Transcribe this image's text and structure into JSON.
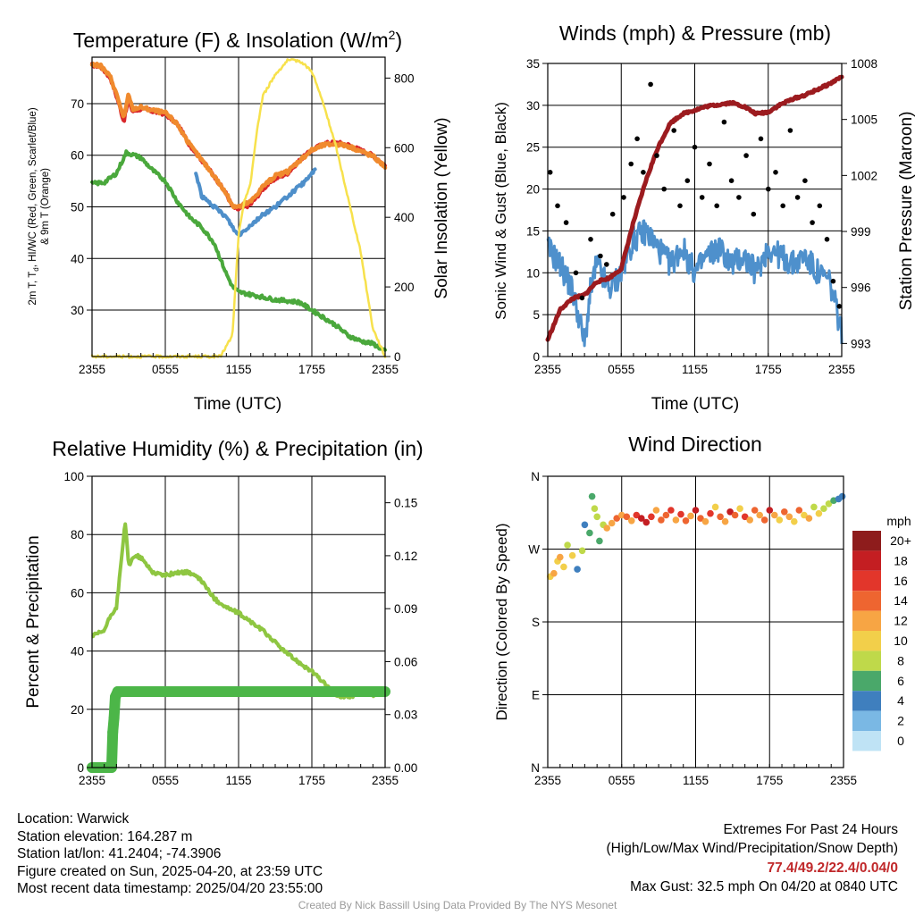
{
  "panels": {
    "temperature": {
      "title": "Temperature (F) & Insolation (W/m",
      "title_sup": "2",
      "title_tail": ")",
      "ylabel_left_line1": "2m T, T",
      "ylabel_left_sub": "d",
      "ylabel_left_rest": ", HI/WC (Red, Green, Scarlet/Blue)",
      "ylabel_left_line2": "& 9m T (Orange)",
      "ylabel_right": "Solar Insolation (Yellow)",
      "xlabel": "Time (UTC)",
      "xticks": [
        "2355",
        "0555",
        "1155",
        "1755",
        "2355"
      ],
      "yticks_left": [
        "30",
        "40",
        "50",
        "60",
        "70"
      ],
      "yticks_right": [
        "0",
        "200",
        "400",
        "600",
        "800"
      ]
    },
    "winds": {
      "title": "Winds (mph) & Pressure (mb)",
      "ylabel_left": "Sonic Wind & Gust (Blue, Black)",
      "ylabel_right": "Station Pressure (Maroon)",
      "xlabel": "Time (UTC)",
      "xticks": [
        "2355",
        "0555",
        "1155",
        "1755",
        "2355"
      ],
      "yticks_left": [
        "0",
        "5",
        "10",
        "15",
        "20",
        "25",
        "30",
        "35"
      ],
      "yticks_right": [
        "993",
        "996",
        "999",
        "1002",
        "1005",
        "1008"
      ]
    },
    "humidity": {
      "title": "Relative Humidity (%) & Precipitation (in)",
      "ylabel_left": "Percent & Precipitation",
      "xticks": [
        "2355",
        "0555",
        "1155",
        "1755",
        "2355"
      ],
      "yticks_left": [
        "0",
        "20",
        "40",
        "60",
        "80",
        "100"
      ],
      "yticks_right": [
        "0.00",
        "0.03",
        "0.06",
        "0.09",
        "0.12",
        "0.15"
      ]
    },
    "direction": {
      "title": "Wind Direction",
      "ylabel_left": "Direction (Colored By Speed)",
      "xticks": [
        "2355",
        "0555",
        "1155",
        "1755",
        "2355"
      ],
      "yticks_left": [
        "N",
        "E",
        "S",
        "W",
        "N"
      ],
      "legend_title": "mph",
      "legend_labels": [
        "20+",
        "18",
        "16",
        "14",
        "12",
        "10",
        "8",
        "6",
        "4",
        "2",
        "0"
      ],
      "legend_colors": [
        "#8e1c1c",
        "#c41e22",
        "#e2362b",
        "#ee6530",
        "#f7a544",
        "#f2cf4a",
        "#bfd94a",
        "#4aa86a",
        "#3f7fbe",
        "#7ab8e4",
        "#bfe3f5"
      ]
    }
  },
  "chart_data": [
    {
      "type": "line",
      "title": "Temperature (F) & Insolation (W/m2)",
      "xlabel": "Time (UTC)",
      "ylabel": "2m T, Td, HI/WC (Red, Green, Scarlet/Blue) & 9m T (Orange)",
      "y2label": "Solar Insolation (Yellow)",
      "xlim": [
        0,
        24
      ],
      "ylim": [
        21,
        79
      ],
      "y2lim": [
        0,
        860
      ],
      "x_tick_labels": [
        "2355",
        "0555",
        "1155",
        "1755",
        "2355"
      ],
      "series": [
        {
          "name": "2m T",
          "color": "#d9262b",
          "axis": "left",
          "x": [
            0,
            0.7,
            1.5,
            2.2,
            2.6,
            3.0,
            3.3,
            4,
            5,
            6,
            7,
            8,
            9,
            10,
            11,
            11.5,
            12,
            13,
            14,
            15,
            16,
            17,
            18,
            19,
            20,
            21,
            22,
            23,
            24
          ],
          "y": [
            77.5,
            77.2,
            75,
            70,
            66.5,
            71,
            68.5,
            69,
            68.5,
            68,
            66,
            62,
            59,
            56,
            52.5,
            50,
            49.5,
            50.5,
            53.5,
            55.5,
            56.5,
            59,
            61,
            62.3,
            62.5,
            62,
            61,
            60,
            58
          ]
        },
        {
          "name": "9m T",
          "color": "#f08a2e",
          "axis": "left",
          "x": [
            0,
            0.7,
            1.5,
            2.2,
            2.6,
            3.0,
            3.3,
            4,
            5,
            6,
            7,
            8,
            9,
            10,
            11,
            11.5,
            12,
            13,
            14,
            15,
            16,
            17,
            18,
            19,
            20,
            21,
            22,
            23,
            24
          ],
          "y": [
            77.6,
            77.3,
            75.2,
            70.5,
            67,
            72,
            69,
            69.3,
            68.7,
            68.2,
            66,
            62,
            59,
            56,
            52.5,
            50.3,
            50,
            51,
            54,
            56,
            56.8,
            59,
            61,
            62,
            62.2,
            61.8,
            60.8,
            59.8,
            57.8
          ]
        },
        {
          "name": "Td",
          "color": "#4aa83c",
          "axis": "left",
          "x": [
            0,
            1,
            2,
            2.8,
            3.5,
            4,
            5,
            6,
            7,
            8,
            9,
            10,
            11,
            11.5,
            12,
            13,
            14,
            15,
            16,
            17,
            18,
            19,
            20,
            21,
            22,
            23,
            24
          ],
          "y": [
            54.5,
            54.7,
            56.5,
            60.5,
            60,
            59.5,
            57,
            55,
            51,
            48,
            46,
            43,
            37,
            34.5,
            33.5,
            33,
            32.5,
            32,
            31.8,
            31.5,
            30,
            28.5,
            27,
            25,
            24,
            23.5,
            22
          ]
        },
        {
          "name": "HI/WC",
          "color": "#4e8fca",
          "axis": "left",
          "x": [
            8.5,
            9,
            10,
            11,
            11.8,
            12,
            13,
            14,
            15,
            16,
            17,
            17.5,
            18,
            18.3
          ],
          "y": [
            56.5,
            52,
            50,
            48,
            45,
            44.5,
            46.5,
            48.5,
            50,
            52,
            54,
            55,
            56.5,
            57.5
          ]
        },
        {
          "name": "Solar Insolation",
          "color": "#f7e14c",
          "axis": "right",
          "x": [
            0,
            10.5,
            11.5,
            12,
            12.5,
            13,
            13.5,
            14,
            15,
            16,
            17,
            18,
            19,
            20,
            21,
            22,
            23,
            24
          ],
          "y": [
            0,
            0,
            60,
            350,
            450,
            500,
            650,
            750,
            810,
            850,
            850,
            820,
            720,
            600,
            450,
            300,
            80,
            0
          ]
        }
      ]
    },
    {
      "type": "line",
      "title": "Winds (mph) & Pressure (mb)",
      "xlabel": "Time (UTC)",
      "ylabel": "Sonic Wind & Gust (Blue, Black)",
      "y2label": "Station Pressure (Maroon)",
      "xlim": [
        0,
        24
      ],
      "ylim": [
        0,
        35
      ],
      "y2lim": [
        992.3,
        1008
      ],
      "x_tick_labels": [
        "2355",
        "0555",
        "1155",
        "1755",
        "2355"
      ],
      "series": [
        {
          "name": "Sonic Wind",
          "color": "#4e90cc",
          "axis": "left",
          "x": [
            0,
            1,
            2,
            2.5,
            3,
            3.5,
            4,
            5,
            6,
            7,
            8,
            9,
            10,
            11,
            12,
            13,
            14,
            15,
            16,
            17,
            18,
            19,
            20,
            21,
            22,
            23,
            23.5,
            24
          ],
          "y": [
            13,
            11,
            8,
            5,
            1.5,
            8,
            11,
            8,
            10,
            14,
            15,
            13,
            11,
            13,
            10,
            12,
            13,
            11,
            12,
            10,
            13,
            12,
            11,
            12,
            10,
            9,
            6,
            3
          ]
        },
        {
          "name": "Gust",
          "color": "#000000",
          "axis": "left",
          "x": [
            0.2,
            0.8,
            1.5,
            2.3,
            2.8,
            3.5,
            4.3,
            4.8,
            5.3,
            6.2,
            6.8,
            7.3,
            7.8,
            8.4,
            8.9,
            9.5,
            10.3,
            10.8,
            11.4,
            12,
            12.6,
            13.2,
            13.8,
            14.4,
            15,
            15.6,
            16.2,
            16.8,
            17.4,
            18,
            18.6,
            19.2,
            19.8,
            20.4,
            21,
            21.6,
            22.2,
            22.8,
            23.3,
            23.8
          ],
          "y": [
            22,
            18,
            16,
            10,
            7,
            14,
            12,
            11,
            17,
            19,
            23,
            26,
            22,
            32.5,
            24,
            20,
            27,
            18,
            21,
            25,
            19,
            23,
            18,
            28,
            21,
            19,
            24,
            17,
            26,
            20,
            22,
            18,
            27,
            19,
            21,
            16,
            18,
            14,
            9,
            6
          ]
        },
        {
          "name": "Station Pressure",
          "color": "#9c1b1f",
          "axis": "right",
          "x": [
            0,
            1,
            2,
            3,
            4,
            5,
            6,
            7,
            8,
            9,
            10,
            11,
            12,
            13,
            14,
            15,
            16,
            17,
            18,
            19,
            20,
            21,
            22,
            23,
            24
          ],
          "y": [
            993.2,
            994.8,
            995.4,
            995.6,
            996.3,
            996.5,
            997,
            999.5,
            1001.7,
            1003.5,
            1004.8,
            1005.3,
            1005.5,
            1005.7,
            1005.8,
            1005.9,
            1005.7,
            1005.3,
            1005.4,
            1005.8,
            1006.1,
            1006.3,
            1006.6,
            1006.9,
            1007.3
          ]
        }
      ]
    },
    {
      "type": "line",
      "title": "Relative Humidity (%) & Precipitation (in)",
      "ylabel": "Percent & Precipitation",
      "xlim": [
        0,
        24
      ],
      "ylim": [
        0,
        100
      ],
      "y2lim": [
        0,
        0.165
      ],
      "x_tick_labels": [
        "2355",
        "0555",
        "1155",
        "1755",
        "2355"
      ],
      "series": [
        {
          "name": "Relative Humidity",
          "color": "#8ec641",
          "axis": "left",
          "x": [
            0,
            1,
            1.5,
            2,
            2.5,
            2.7,
            3,
            3.5,
            4,
            5,
            6,
            7,
            8,
            9,
            10,
            11,
            12,
            13,
            14,
            15,
            16,
            17,
            18,
            19,
            20,
            21,
            22,
            23,
            24
          ],
          "y": [
            45,
            47,
            52,
            55,
            75,
            85,
            69,
            73,
            72,
            67,
            66,
            67,
            67,
            64,
            58,
            55,
            53,
            50,
            47,
            43,
            39,
            36,
            33,
            29,
            25,
            24,
            26,
            25,
            26
          ]
        },
        {
          "name": "Precipitation",
          "color": "#4cb648",
          "axis": "right",
          "x": [
            0,
            0.5,
            1,
            1.5,
            1.6,
            1.7,
            1.8,
            1.9,
            2.1,
            3,
            6,
            9,
            12,
            15,
            18,
            21,
            24
          ],
          "y": [
            0.0,
            0.0,
            0.0,
            0.0,
            0.0,
            0.02,
            0.028,
            0.04,
            0.043,
            0.043,
            0.043,
            0.043,
            0.043,
            0.043,
            0.043,
            0.043,
            0.043
          ]
        }
      ]
    },
    {
      "type": "scatter",
      "title": "Wind Direction",
      "ylabel": "Direction (Colored By Speed)",
      "xlim": [
        0,
        24
      ],
      "ylim": [
        0,
        360
      ],
      "x_tick_labels": [
        "2355",
        "0555",
        "1155",
        "1755",
        "2355"
      ],
      "y_tick_labels": [
        "N",
        "E",
        "S",
        "W",
        "N"
      ],
      "color_scale": {
        "title": "mph",
        "min": 0,
        "max": 20
      },
      "points": [
        [
          0.2,
          236,
          10
        ],
        [
          0.5,
          240,
          11
        ],
        [
          0.8,
          255,
          9
        ],
        [
          1.0,
          260,
          12
        ],
        [
          1.3,
          248,
          10
        ],
        [
          1.6,
          275,
          8
        ],
        [
          2.0,
          262,
          9
        ],
        [
          2.4,
          245,
          4
        ],
        [
          2.8,
          268,
          7
        ],
        [
          3.0,
          300,
          4
        ],
        [
          3.4,
          290,
          5
        ],
        [
          3.6,
          335,
          6
        ],
        [
          3.8,
          320,
          7
        ],
        [
          4.0,
          310,
          7
        ],
        [
          4.2,
          280,
          6
        ],
        [
          4.5,
          300,
          8
        ],
        [
          4.8,
          296,
          12
        ],
        [
          5.2,
          302,
          11
        ],
        [
          5.6,
          308,
          13
        ],
        [
          6.0,
          312,
          11
        ],
        [
          6.4,
          310,
          14
        ],
        [
          6.8,
          305,
          12
        ],
        [
          7.2,
          312,
          16
        ],
        [
          7.6,
          308,
          18
        ],
        [
          8.0,
          303,
          17
        ],
        [
          8.4,
          310,
          15
        ],
        [
          8.8,
          318,
          12
        ],
        [
          9.2,
          306,
          14
        ],
        [
          9.6,
          312,
          13
        ],
        [
          10.0,
          318,
          16
        ],
        [
          10.4,
          306,
          12
        ],
        [
          10.8,
          313,
          15
        ],
        [
          11.2,
          305,
          13
        ],
        [
          11.6,
          311,
          11
        ],
        [
          12.0,
          318,
          18
        ],
        [
          12.4,
          308,
          14
        ],
        [
          12.8,
          304,
          12
        ],
        [
          13.2,
          314,
          15
        ],
        [
          13.6,
          322,
          9
        ],
        [
          14.0,
          310,
          14
        ],
        [
          14.4,
          304,
          12
        ],
        [
          14.8,
          316,
          18
        ],
        [
          15.2,
          312,
          13
        ],
        [
          15.6,
          320,
          10
        ],
        [
          16.0,
          310,
          16
        ],
        [
          16.4,
          306,
          12
        ],
        [
          16.8,
          318,
          14
        ],
        [
          17.2,
          312,
          11
        ],
        [
          17.6,
          306,
          13
        ],
        [
          18.0,
          318,
          17
        ],
        [
          18.4,
          312,
          12
        ],
        [
          18.8,
          306,
          10
        ],
        [
          19.2,
          316,
          14
        ],
        [
          19.6,
          310,
          12
        ],
        [
          20.0,
          304,
          10
        ],
        [
          20.4,
          318,
          13
        ],
        [
          20.8,
          312,
          9
        ],
        [
          21.2,
          308,
          11
        ],
        [
          21.6,
          322,
          8
        ],
        [
          22.0,
          314,
          10
        ],
        [
          22.4,
          320,
          7
        ],
        [
          22.8,
          326,
          8
        ],
        [
          23.2,
          330,
          6
        ],
        [
          23.6,
          332,
          4
        ],
        [
          23.9,
          335,
          4
        ]
      ]
    }
  ],
  "footer": {
    "location": "Location: Warwick",
    "elevation": "Station elevation: 164.287 m",
    "latlon": "Station lat/lon: 41.2404; -74.3906",
    "created": "Figure created on Sun, 2025-04-20, at 23:59 UTC",
    "recent": "Most recent data timestamp: 2025/04/20 23:55:00",
    "extremes_title": "Extremes For Past 24 Hours",
    "extremes_fields": "(High/Low/Max Wind/Precipitation/Snow Depth)",
    "extremes_values": "77.4/49.2/22.4/0.04/0",
    "max_gust": "Max Gust: 32.5 mph On 04/20 at 0840 UTC",
    "credit": "Created By Nick Bassill Using Data Provided By The NYS Mesonet"
  }
}
